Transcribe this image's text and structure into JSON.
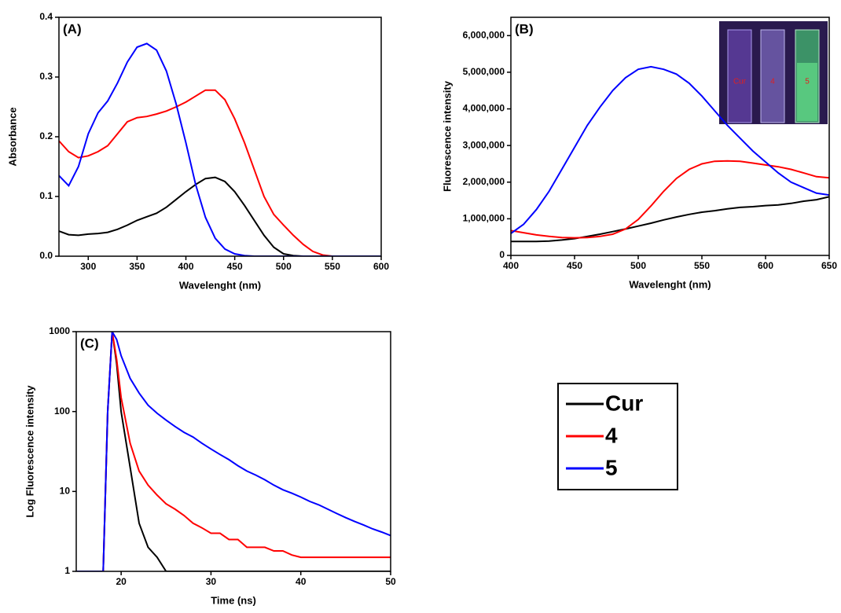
{
  "chart_data": [
    {
      "type": "line",
      "title": "(A)",
      "xlabel": "Wavelenght (nm)",
      "ylabel": "Absorbance",
      "x": [
        270,
        280,
        290,
        300,
        310,
        320,
        330,
        340,
        350,
        360,
        370,
        380,
        390,
        400,
        410,
        420,
        430,
        440,
        450,
        460,
        470,
        480,
        490,
        500,
        510,
        520,
        530,
        540,
        550,
        560,
        570,
        580,
        590,
        600
      ],
      "series": [
        {
          "color": "#000000",
          "values": [
            0.042,
            0.036,
            0.035,
            0.037,
            0.038,
            0.04,
            0.045,
            0.052,
            0.06,
            0.066,
            0.072,
            0.082,
            0.095,
            0.108,
            0.12,
            0.13,
            0.132,
            0.125,
            0.108,
            0.085,
            0.06,
            0.035,
            0.015,
            0.004,
            0.001,
            0,
            0,
            0,
            0,
            0,
            0,
            0,
            0,
            0
          ]
        },
        {
          "color": "#ff0000",
          "values": [
            0.193,
            0.175,
            0.165,
            0.168,
            0.175,
            0.185,
            0.205,
            0.225,
            0.232,
            0.234,
            0.238,
            0.243,
            0.25,
            0.258,
            0.268,
            0.278,
            0.278,
            0.262,
            0.23,
            0.19,
            0.145,
            0.1,
            0.07,
            0.052,
            0.035,
            0.02,
            0.008,
            0.002,
            0,
            0,
            0,
            0,
            0,
            0
          ]
        },
        {
          "color": "#0000ff",
          "values": [
            0.135,
            0.118,
            0.15,
            0.205,
            0.24,
            0.26,
            0.29,
            0.325,
            0.35,
            0.356,
            0.345,
            0.31,
            0.255,
            0.19,
            0.12,
            0.065,
            0.03,
            0.012,
            0.004,
            0.001,
            0,
            0,
            0,
            0,
            0,
            0,
            0,
            0,
            0,
            0,
            0,
            0,
            0,
            0
          ]
        }
      ],
      "xlim": [
        270,
        600
      ],
      "xticks": [
        300,
        350,
        400,
        450,
        500,
        550,
        600
      ],
      "ylim": [
        0,
        0.4
      ],
      "yticks": [
        {
          "value": 0,
          "label": "0.0"
        },
        0.1,
        0.2,
        0.3,
        0.4
      ]
    },
    {
      "type": "line",
      "title": "(B)",
      "xlabel": "Wavelenght (nm)",
      "ylabel": "Fluorescence intensity",
      "inset_labels": [
        "Cur",
        "4",
        "5"
      ],
      "x": [
        400,
        410,
        420,
        430,
        440,
        450,
        460,
        470,
        480,
        490,
        500,
        510,
        520,
        530,
        540,
        550,
        560,
        570,
        580,
        590,
        600,
        610,
        620,
        630,
        640,
        650
      ],
      "series": [
        {
          "color": "#000000",
          "values": [
            380000,
            380000,
            380000,
            390000,
            420000,
            460000,
            520000,
            580000,
            650000,
            720000,
            800000,
            880000,
            970000,
            1050000,
            1120000,
            1180000,
            1220000,
            1270000,
            1310000,
            1330000,
            1360000,
            1380000,
            1420000,
            1480000,
            1520000,
            1600000
          ]
        },
        {
          "color": "#ff0000",
          "values": [
            680000,
            620000,
            560000,
            520000,
            490000,
            480000,
            490000,
            520000,
            580000,
            720000,
            980000,
            1350000,
            1750000,
            2100000,
            2350000,
            2500000,
            2570000,
            2580000,
            2570000,
            2520000,
            2470000,
            2420000,
            2350000,
            2250000,
            2150000,
            2120000
          ]
        },
        {
          "color": "#0000ff",
          "values": [
            600000,
            850000,
            1250000,
            1750000,
            2350000,
            2950000,
            3550000,
            4050000,
            4500000,
            4850000,
            5080000,
            5150000,
            5080000,
            4950000,
            4700000,
            4350000,
            3950000,
            3550000,
            3200000,
            2850000,
            2550000,
            2250000,
            2000000,
            1850000,
            1700000,
            1650000
          ]
        }
      ],
      "xlim": [
        400,
        650
      ],
      "xticks": [
        400,
        450,
        500,
        550,
        600,
        650
      ],
      "ylim": [
        0,
        6500000
      ],
      "yticks": [
        0,
        {
          "value": 1000000,
          "label": "1,000,000"
        },
        {
          "value": 2000000,
          "label": "2,000,000"
        },
        {
          "value": 3000000,
          "label": "3,000,000"
        },
        {
          "value": 4000000,
          "label": "4,000,000"
        },
        {
          "value": 5000000,
          "label": "5,000,000"
        },
        {
          "value": 6000000,
          "label": "6,000,000"
        }
      ]
    },
    {
      "type": "line",
      "title": "(C)",
      "xlabel": "Time (ns)",
      "ylabel": "Log Fluorescence intensity",
      "log_y": true,
      "x": [
        15,
        16,
        17,
        18,
        18.5,
        19,
        19.5,
        20,
        21,
        22,
        23,
        24,
        25,
        26,
        27,
        28,
        29,
        30,
        31,
        32,
        33,
        34,
        35,
        36,
        37,
        38,
        39,
        40,
        41,
        42,
        43,
        44,
        45,
        46,
        47,
        48,
        49,
        50
      ],
      "series": [
        {
          "color": "#000000",
          "values": [
            1,
            1,
            1,
            1,
            100,
            1000,
            400,
            100,
            20,
            4,
            2,
            1.5,
            1,
            1,
            1,
            1,
            1,
            1,
            1,
            1,
            1,
            1,
            1,
            1,
            1,
            1,
            1,
            1,
            1,
            1,
            1,
            1,
            1,
            1,
            1,
            1,
            1,
            1
          ]
        },
        {
          "color": "#ff0000",
          "values": [
            1,
            1,
            1,
            1,
            100,
            1000,
            450,
            150,
            40,
            18,
            12,
            9,
            7,
            6,
            5,
            4,
            3.5,
            3,
            3,
            2.5,
            2.5,
            2,
            2,
            2,
            1.8,
            1.8,
            1.6,
            1.5,
            1.5,
            1.5,
            1.5,
            1.5,
            1.5,
            1.5,
            1.5,
            1.5,
            1.5,
            1.5
          ]
        },
        {
          "color": "#0000ff",
          "values": [
            1,
            1,
            1,
            1,
            100,
            1000,
            800,
            500,
            260,
            170,
            120,
            95,
            78,
            65,
            55,
            48,
            40,
            34,
            29,
            25,
            21,
            18,
            16,
            14,
            12,
            10.5,
            9.5,
            8.5,
            7.5,
            6.8,
            6,
            5.3,
            4.7,
            4.2,
            3.8,
            3.4,
            3.1,
            2.8
          ]
        }
      ],
      "xlim": [
        15,
        50
      ],
      "xticks": [
        20,
        30,
        40,
        50
      ],
      "ylim": [
        1,
        1000
      ],
      "yticks": [
        1,
        10,
        100,
        1000
      ]
    }
  ],
  "legend": [
    "Cur",
    "4",
    "5"
  ]
}
